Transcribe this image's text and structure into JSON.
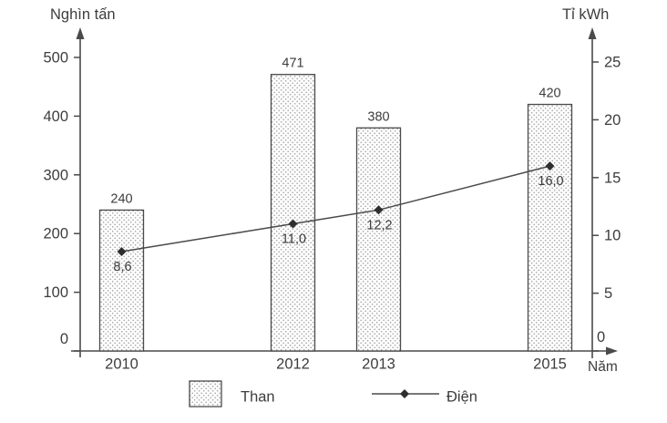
{
  "chart_data": {
    "type": "bar+line",
    "title": "",
    "categories": [
      "2010",
      "2012",
      "2013",
      "2015"
    ],
    "category_years": [
      2010,
      2012,
      2013,
      2015
    ],
    "series": [
      {
        "name": "Than",
        "type": "bar",
        "axis": "left",
        "values": [
          240,
          471,
          380,
          420
        ],
        "point_labels": [
          "240",
          "471",
          "380",
          "420"
        ]
      },
      {
        "name": "Điện",
        "type": "line",
        "axis": "right",
        "values": [
          8.6,
          11,
          12.2,
          16
        ],
        "point_labels": [
          "8,6",
          "11,0",
          "12,2",
          "16,0"
        ]
      }
    ],
    "left_axis": {
      "title": "Nghìn tấn",
      "tick_labels": [
        "0",
        "100",
        "200",
        "300",
        "400",
        "500"
      ],
      "tick_values": [
        0,
        100,
        200,
        300,
        400,
        500
      ],
      "range": [
        0,
        500
      ]
    },
    "right_axis": {
      "title": "Tỉ kWh",
      "tick_labels": [
        "0",
        "5",
        "10",
        "15",
        "20",
        "25"
      ],
      "tick_values": [
        0,
        5,
        10,
        15,
        20,
        25
      ],
      "range": [
        0,
        25
      ]
    },
    "x_axis": {
      "title": "Năm"
    },
    "grid": false,
    "legend_position": "bottom",
    "legend": [
      {
        "label": "Than",
        "symbol": "dotted-bar-swatch"
      },
      {
        "label": "Điện",
        "symbol": "line-with-diamond-marker"
      }
    ]
  },
  "colors": {
    "ink": "#3d3d3d",
    "axis": "#4a4a4a",
    "bar_dot": "#9b9b9b",
    "bar_background": "#fdfdfd",
    "background": "#ffffff"
  }
}
